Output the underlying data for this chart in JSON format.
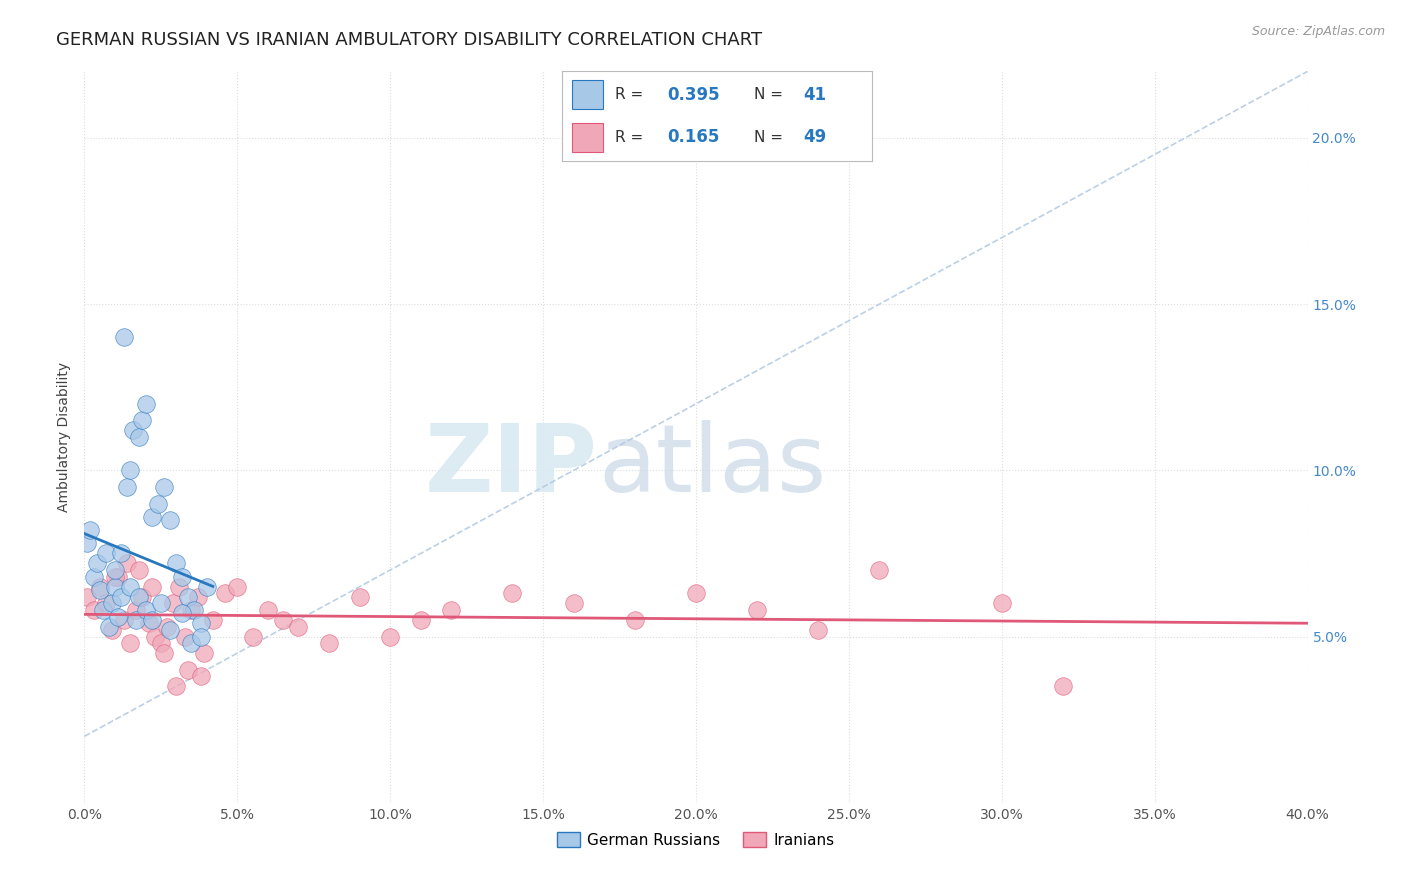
{
  "title": "GERMAN RUSSIAN VS IRANIAN AMBULATORY DISABILITY CORRELATION CHART",
  "source": "Source: ZipAtlas.com",
  "ylabel_left": "Ambulatory Disability",
  "watermark_zip": "ZIP",
  "watermark_atlas": "atlas",
  "xlim": [
    0.0,
    0.4
  ],
  "ylim": [
    0.0,
    0.22
  ],
  "xticks": [
    0.0,
    0.05,
    0.1,
    0.15,
    0.2,
    0.25,
    0.3,
    0.35,
    0.4
  ],
  "xtick_labels": [
    "0.0%",
    "",
    "",
    "",
    "",
    "",
    "",
    "",
    "40.0%"
  ],
  "yticks_right": [
    0.05,
    0.1,
    0.15,
    0.2
  ],
  "ytick_labels_right": [
    "5.0%",
    "10.0%",
    "15.0%",
    "20.0%"
  ],
  "R_blue": 0.395,
  "N_blue": 41,
  "R_pink": 0.165,
  "N_pink": 49,
  "color_blue": "#A8C8E8",
  "color_pink": "#F0A8B8",
  "color_line_blue": "#2878C0",
  "color_line_pink": "#E05878",
  "color_dashed": "#B0C8E0",
  "legend_label_blue": "German Russians",
  "legend_label_pink": "Iranians",
  "blue_x": [
    0.001,
    0.002,
    0.003,
    0.004,
    0.005,
    0.006,
    0.007,
    0.008,
    0.009,
    0.01,
    0.011,
    0.012,
    0.013,
    0.014,
    0.015,
    0.016,
    0.017,
    0.018,
    0.019,
    0.02,
    0.022,
    0.024,
    0.026,
    0.028,
    0.03,
    0.032,
    0.034,
    0.036,
    0.038,
    0.04,
    0.01,
    0.012,
    0.015,
    0.018,
    0.02,
    0.022,
    0.025,
    0.028,
    0.032,
    0.035,
    0.038
  ],
  "blue_y": [
    0.078,
    0.082,
    0.068,
    0.072,
    0.064,
    0.058,
    0.075,
    0.053,
    0.06,
    0.065,
    0.056,
    0.062,
    0.14,
    0.095,
    0.1,
    0.112,
    0.055,
    0.11,
    0.115,
    0.12,
    0.086,
    0.09,
    0.095,
    0.085,
    0.072,
    0.068,
    0.062,
    0.058,
    0.054,
    0.065,
    0.07,
    0.075,
    0.065,
    0.062,
    0.058,
    0.055,
    0.06,
    0.052,
    0.057,
    0.048,
    0.05
  ],
  "pink_x": [
    0.001,
    0.003,
    0.005,
    0.007,
    0.009,
    0.011,
    0.013,
    0.015,
    0.017,
    0.019,
    0.021,
    0.023,
    0.025,
    0.027,
    0.029,
    0.031,
    0.033,
    0.035,
    0.037,
    0.039,
    0.042,
    0.046,
    0.05,
    0.055,
    0.06,
    0.065,
    0.07,
    0.08,
    0.09,
    0.1,
    0.11,
    0.12,
    0.14,
    0.16,
    0.18,
    0.2,
    0.22,
    0.24,
    0.26,
    0.3,
    0.32,
    0.01,
    0.014,
    0.018,
    0.022,
    0.026,
    0.03,
    0.034,
    0.038
  ],
  "pink_y": [
    0.062,
    0.058,
    0.065,
    0.06,
    0.052,
    0.068,
    0.055,
    0.048,
    0.058,
    0.062,
    0.054,
    0.05,
    0.048,
    0.053,
    0.06,
    0.065,
    0.05,
    0.058,
    0.062,
    0.045,
    0.055,
    0.063,
    0.065,
    0.05,
    0.058,
    0.055,
    0.053,
    0.048,
    0.062,
    0.05,
    0.055,
    0.058,
    0.063,
    0.06,
    0.055,
    0.063,
    0.058,
    0.052,
    0.07,
    0.06,
    0.035,
    0.068,
    0.072,
    0.07,
    0.065,
    0.045,
    0.035,
    0.04,
    0.038
  ],
  "background_color": "#FFFFFF",
  "grid_color": "#DDDDDD",
  "title_fontsize": 13,
  "axis_label_fontsize": 10,
  "tick_fontsize": 10,
  "legend_fontsize": 11
}
